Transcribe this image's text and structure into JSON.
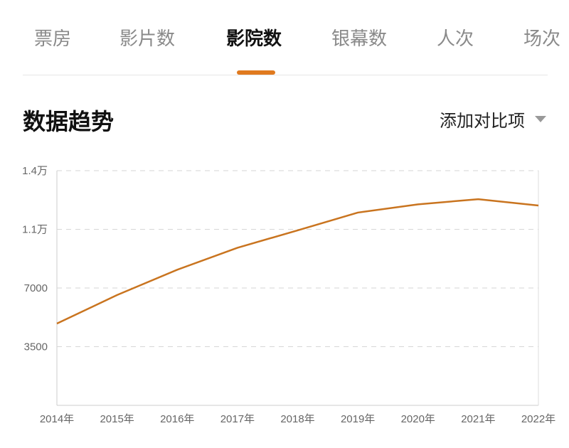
{
  "tabs": [
    {
      "label": "票房"
    },
    {
      "label": "影片数"
    },
    {
      "label": "影院数",
      "active": true
    },
    {
      "label": "银幕数"
    },
    {
      "label": "人次"
    },
    {
      "label": "场次"
    }
  ],
  "section": {
    "title": "数据趋势",
    "compare_label": "添加对比项",
    "compare_icon": "caret-down-icon"
  },
  "colors": {
    "accent": "#e07a1f",
    "line": "#c9741f"
  },
  "chart_data": {
    "type": "line",
    "title": "",
    "xlabel": "",
    "ylabel": "",
    "categories": [
      "2014年",
      "2015年",
      "2016年",
      "2017年",
      "2018年",
      "2019年",
      "2020年",
      "2021年",
      "2022年"
    ],
    "series": [
      {
        "values": [
          4880,
          6580,
          8090,
          9400,
          10440,
          11500,
          11990,
          12300,
          11920
        ]
      }
    ],
    "ylim": [
      0,
      14000
    ],
    "yticks": [
      {
        "value": 3500,
        "label": "3500"
      },
      {
        "value": 7000,
        "label": "7000"
      },
      {
        "value": 10500,
        "label": "1.1万"
      },
      {
        "value": 14000,
        "label": "1.4万"
      }
    ],
    "grid": true,
    "legend": "none"
  }
}
